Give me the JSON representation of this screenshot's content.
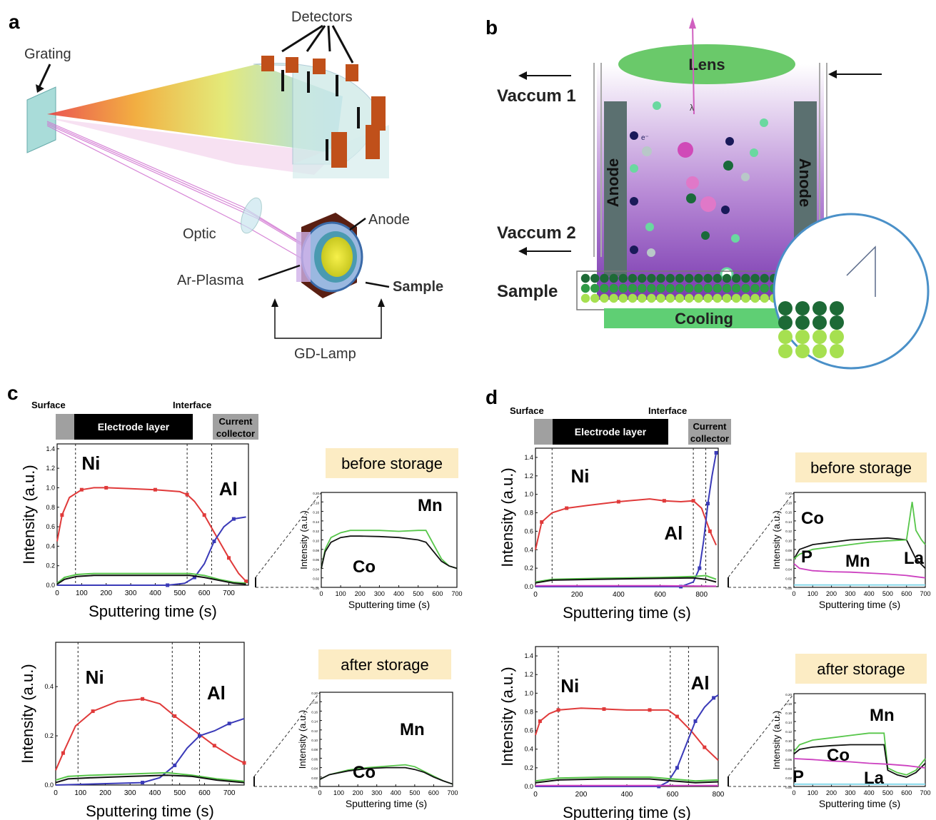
{
  "figure": {
    "panel_labels": {
      "a": "a",
      "b": "b",
      "c": "c",
      "d": "d"
    },
    "panel_a": {
      "detectors": "Detectors",
      "grating": "Grating",
      "optic": "Optic",
      "anode": "Anode",
      "ar_plasma": "Ar-Plasma",
      "sample": "Sample",
      "gd_lamp": "GD-Lamp"
    },
    "panel_b": {
      "lens": "Lens",
      "vaccum1": "Vaccum 1",
      "vaccum2": "Vaccum 2",
      "anode_left": "Anode",
      "anode_right": "Anode",
      "sample": "Sample",
      "cooling": "Cooling",
      "lambda": "λ",
      "electron": "e⁻"
    },
    "colors": {
      "ni": "#e03a3a",
      "al": "#3a3ab8",
      "co": "#111111",
      "mn": "#57c64a",
      "p": "#cc40c0",
      "la": "#7fd6e8",
      "storage_box": "#fcecc4",
      "lens": "#6ac96a",
      "cooling": "#5fcf74"
    }
  },
  "chart_data": [
    {
      "id": "c-top-main",
      "type": "line",
      "xlabel": "Sputtering time (s)",
      "ylabel": "Intensity (a.u.)",
      "xlim": [
        0,
        780
      ],
      "ylim": [
        0,
        1.45
      ],
      "xticks": [
        0,
        100,
        200,
        300,
        400,
        500,
        600,
        700
      ],
      "yticks": [
        0.0,
        0.2,
        0.4,
        0.6,
        0.8,
        1.0,
        1.2,
        1.4
      ],
      "header": {
        "surface": "Surface",
        "interface": "Interface",
        "electrode": "Electrode layer",
        "current": "Current",
        "collector": "collector"
      },
      "vlines": [
        75,
        530,
        630
      ],
      "annotations": {
        "ni": "Ni",
        "al": "Al"
      },
      "series": [
        {
          "name": "Ni",
          "x": [
            0,
            20,
            50,
            100,
            150,
            200,
            300,
            400,
            500,
            530,
            560,
            600,
            650,
            700,
            740,
            770
          ],
          "y": [
            0.45,
            0.72,
            0.9,
            0.98,
            1.0,
            1.0,
            0.99,
            0.98,
            0.96,
            0.93,
            0.86,
            0.72,
            0.5,
            0.28,
            0.12,
            0.04
          ]
        },
        {
          "name": "Al",
          "x": [
            0,
            450,
            520,
            560,
            600,
            640,
            680,
            720,
            770
          ],
          "y": [
            0.0,
            0.0,
            0.02,
            0.08,
            0.22,
            0.45,
            0.6,
            0.68,
            0.7
          ]
        },
        {
          "name": "Mn",
          "x": [
            0,
            30,
            80,
            150,
            300,
            450,
            540,
            600,
            660,
            720,
            770
          ],
          "y": [
            0.02,
            0.08,
            0.11,
            0.12,
            0.12,
            0.12,
            0.12,
            0.1,
            0.06,
            0.03,
            0.02
          ]
        },
        {
          "name": "Co",
          "x": [
            0,
            30,
            80,
            150,
            300,
            450,
            540,
            600,
            660,
            720,
            770
          ],
          "y": [
            0.01,
            0.06,
            0.09,
            0.1,
            0.1,
            0.1,
            0.1,
            0.08,
            0.05,
            0.02,
            0.01
          ]
        }
      ]
    },
    {
      "id": "c-top-inset",
      "type": "line",
      "xlabel": "Sputtering time (s)",
      "ylabel": "Intensity (a.u.)",
      "xlim": [
        0,
        700
      ],
      "ylim": [
        0,
        0.2
      ],
      "xticks": [
        0,
        100,
        200,
        300,
        400,
        500,
        600,
        700
      ],
      "yticks": [
        0.0,
        0.02,
        0.04,
        0.06,
        0.08,
        0.1,
        0.12,
        0.14,
        0.16,
        0.18,
        0.2
      ],
      "box_label": "before storage",
      "annotations": {
        "mn": "Mn",
        "co": "Co"
      },
      "series": [
        {
          "name": "Mn",
          "x": [
            0,
            20,
            50,
            100,
            150,
            200,
            300,
            400,
            500,
            540,
            580,
            620,
            660,
            700
          ],
          "y": [
            0.04,
            0.08,
            0.105,
            0.115,
            0.12,
            0.12,
            0.12,
            0.118,
            0.12,
            0.12,
            0.09,
            0.06,
            0.045,
            0.04
          ]
        },
        {
          "name": "Co",
          "x": [
            0,
            20,
            50,
            100,
            150,
            200,
            300,
            400,
            500,
            540,
            580,
            620,
            660,
            700
          ],
          "y": [
            0.04,
            0.075,
            0.095,
            0.105,
            0.108,
            0.108,
            0.107,
            0.105,
            0.1,
            0.095,
            0.075,
            0.055,
            0.045,
            0.04
          ]
        }
      ]
    },
    {
      "id": "c-bot-main",
      "type": "line",
      "xlabel": "Sputtering time (s)",
      "ylabel": "Intensity (a.u.)",
      "xlim": [
        0,
        760
      ],
      "ylim": [
        0,
        0.58
      ],
      "xticks": [
        0,
        100,
        200,
        300,
        400,
        500,
        600,
        700
      ],
      "yticks": [
        0.0,
        0.2,
        0.4
      ],
      "vlines": [
        90,
        470,
        580
      ],
      "annotations": {
        "ni": "Ni",
        "al": "Al"
      },
      "series": [
        {
          "name": "Ni",
          "x": [
            0,
            30,
            80,
            150,
            250,
            350,
            420,
            480,
            560,
            640,
            720,
            760
          ],
          "y": [
            0.06,
            0.13,
            0.24,
            0.3,
            0.34,
            0.35,
            0.33,
            0.28,
            0.22,
            0.16,
            0.11,
            0.09
          ]
        },
        {
          "name": "Al",
          "x": [
            0,
            350,
            420,
            480,
            530,
            580,
            640,
            700,
            760
          ],
          "y": [
            0.0,
            0.01,
            0.03,
            0.08,
            0.15,
            0.2,
            0.22,
            0.25,
            0.27
          ]
        },
        {
          "name": "Mn",
          "x": [
            0,
            50,
            150,
            300,
            450,
            550,
            650,
            760
          ],
          "y": [
            0.02,
            0.035,
            0.04,
            0.045,
            0.05,
            0.04,
            0.025,
            0.015
          ]
        },
        {
          "name": "Co",
          "x": [
            0,
            50,
            150,
            300,
            450,
            550,
            650,
            760
          ],
          "y": [
            0.01,
            0.025,
            0.03,
            0.035,
            0.04,
            0.035,
            0.02,
            0.01
          ]
        }
      ]
    },
    {
      "id": "c-bot-inset",
      "type": "line",
      "xlabel": "Sputtering time (s)",
      "ylabel": "Intensity (a.u.)",
      "xlim": [
        0,
        700
      ],
      "ylim": [
        0,
        0.2
      ],
      "xticks": [
        0,
        100,
        200,
        300,
        400,
        500,
        600,
        700
      ],
      "yticks": [
        0.0,
        0.02,
        0.04,
        0.06,
        0.08,
        0.1,
        0.12,
        0.14,
        0.16,
        0.18,
        0.2
      ],
      "box_label": "after storage",
      "annotations": {
        "mn": "Mn",
        "co": "Co"
      },
      "series": [
        {
          "name": "Mn",
          "x": [
            0,
            50,
            150,
            250,
            350,
            450,
            500,
            550,
            600,
            650,
            700
          ],
          "y": [
            0.015,
            0.025,
            0.035,
            0.04,
            0.043,
            0.046,
            0.042,
            0.032,
            0.022,
            0.012,
            0.005
          ]
        },
        {
          "name": "Co",
          "x": [
            0,
            50,
            150,
            250,
            350,
            450,
            500,
            550,
            600,
            650,
            700
          ],
          "y": [
            0.015,
            0.025,
            0.033,
            0.038,
            0.04,
            0.04,
            0.036,
            0.03,
            0.02,
            0.012,
            0.005
          ]
        }
      ]
    },
    {
      "id": "d-top-main",
      "type": "line",
      "xlabel": "Sputtering time (s)",
      "ylabel": "Intensity (a.u.)",
      "xlim": [
        0,
        880
      ],
      "ylim": [
        0,
        1.5
      ],
      "xticks": [
        0,
        200,
        400,
        600,
        800
      ],
      "yticks": [
        0.0,
        0.2,
        0.4,
        0.6,
        0.8,
        1.0,
        1.2,
        1.4
      ],
      "header": {
        "surface": "Surface",
        "interface": "Interface",
        "electrode": "Electrode layer",
        "current": "Current",
        "collector": "collector"
      },
      "vlines": [
        80,
        760,
        820
      ],
      "annotations": {
        "ni": "Ni",
        "al": "Al"
      },
      "series": [
        {
          "name": "Ni",
          "x": [
            0,
            30,
            80,
            150,
            250,
            400,
            550,
            620,
            700,
            760,
            800,
            840,
            870
          ],
          "y": [
            0.4,
            0.7,
            0.8,
            0.85,
            0.88,
            0.92,
            0.95,
            0.93,
            0.92,
            0.93,
            0.85,
            0.6,
            0.45
          ]
        },
        {
          "name": "Al",
          "x": [
            0,
            700,
            760,
            790,
            810,
            830,
            850,
            870
          ],
          "y": [
            0.0,
            0.0,
            0.05,
            0.2,
            0.5,
            0.9,
            1.2,
            1.45
          ]
        },
        {
          "name": "Mn",
          "x": [
            0,
            80,
            300,
            600,
            760,
            820,
            870
          ],
          "y": [
            0.05,
            0.08,
            0.09,
            0.1,
            0.11,
            0.12,
            0.08
          ]
        },
        {
          "name": "Co",
          "x": [
            0,
            80,
            300,
            600,
            760,
            820,
            870
          ],
          "y": [
            0.04,
            0.07,
            0.08,
            0.09,
            0.095,
            0.08,
            0.05
          ]
        },
        {
          "name": "P",
          "x": [
            0,
            300,
            600,
            870
          ],
          "y": [
            0.01,
            0.01,
            0.01,
            0.005
          ]
        }
      ]
    },
    {
      "id": "d-top-inset",
      "type": "line",
      "xlabel": "Sputtering time (s)",
      "ylabel": "Intensity (a.u.)",
      "xlim": [
        0,
        700
      ],
      "ylim": [
        0,
        0.2
      ],
      "xticks": [
        0,
        100,
        200,
        300,
        400,
        500,
        600,
        700
      ],
      "yticks": [
        0.0,
        0.02,
        0.04,
        0.06,
        0.08,
        0.1,
        0.12,
        0.14,
        0.16,
        0.18,
        0.2
      ],
      "box_label": "before storage",
      "annotations": {
        "co": "Co",
        "mn": "Mn",
        "p": "P",
        "la": "La"
      },
      "series": [
        {
          "name": "Co",
          "x": [
            0,
            30,
            100,
            200,
            300,
            400,
            500,
            600,
            650,
            700
          ],
          "y": [
            0.06,
            0.08,
            0.09,
            0.095,
            0.1,
            0.102,
            0.104,
            0.1,
            0.06,
            0.04
          ]
        },
        {
          "name": "Mn",
          "x": [
            0,
            30,
            100,
            200,
            300,
            400,
            500,
            600,
            630,
            650,
            680,
            700
          ],
          "y": [
            0.06,
            0.07,
            0.08,
            0.085,
            0.09,
            0.095,
            0.098,
            0.1,
            0.18,
            0.12,
            0.1,
            0.09
          ]
        },
        {
          "name": "P",
          "x": [
            0,
            30,
            100,
            200,
            300,
            400,
            500,
            600,
            700
          ],
          "y": [
            0.05,
            0.04,
            0.035,
            0.033,
            0.032,
            0.03,
            0.028,
            0.025,
            0.02
          ]
        },
        {
          "name": "La",
          "x": [
            0,
            700
          ],
          "y": [
            0.005,
            0.005
          ]
        }
      ]
    },
    {
      "id": "d-bot-main",
      "type": "line",
      "xlabel": "Sputtering time (s)",
      "ylabel": "Intensity (a.u.)",
      "xlim": [
        0,
        800
      ],
      "ylim": [
        0,
        1.5
      ],
      "xticks": [
        0,
        200,
        400,
        600,
        800
      ],
      "yticks": [
        0.0,
        0.2,
        0.4,
        0.6,
        0.8,
        1.0,
        1.2,
        1.4
      ],
      "vlines": [
        100,
        590,
        670
      ],
      "annotations": {
        "ni": "Ni",
        "al": "Al"
      },
      "series": [
        {
          "name": "Ni",
          "x": [
            0,
            20,
            60,
            100,
            200,
            300,
            400,
            500,
            580,
            620,
            680,
            740,
            800
          ],
          "y": [
            0.55,
            0.7,
            0.78,
            0.82,
            0.84,
            0.83,
            0.82,
            0.82,
            0.82,
            0.75,
            0.6,
            0.42,
            0.28
          ]
        },
        {
          "name": "Al",
          "x": [
            0,
            540,
            580,
            620,
            660,
            700,
            740,
            780,
            800
          ],
          "y": [
            0.0,
            0.0,
            0.05,
            0.2,
            0.45,
            0.7,
            0.85,
            0.95,
            0.98
          ]
        },
        {
          "name": "Mn",
          "x": [
            0,
            100,
            300,
            500,
            600,
            700,
            800
          ],
          "y": [
            0.06,
            0.09,
            0.1,
            0.1,
            0.08,
            0.06,
            0.07
          ]
        },
        {
          "name": "Co",
          "x": [
            0,
            100,
            300,
            500,
            600,
            700,
            800
          ],
          "y": [
            0.04,
            0.07,
            0.08,
            0.08,
            0.06,
            0.04,
            0.05
          ]
        },
        {
          "name": "P",
          "x": [
            0,
            300,
            600,
            800
          ],
          "y": [
            0.01,
            0.01,
            0.01,
            0.01
          ]
        }
      ]
    },
    {
      "id": "d-bot-inset",
      "type": "line",
      "xlabel": "Sputtering time (s)",
      "ylabel": "Intensity (a.u.)",
      "xlim": [
        0,
        700
      ],
      "ylim": [
        0,
        0.2
      ],
      "xticks": [
        0,
        100,
        200,
        300,
        400,
        500,
        600,
        700
      ],
      "yticks": [
        0.0,
        0.02,
        0.04,
        0.06,
        0.08,
        0.1,
        0.12,
        0.14,
        0.16,
        0.18,
        0.2
      ],
      "box_label": "after storage",
      "annotations": {
        "mn": "Mn",
        "co": "Co",
        "p": "P",
        "la": "La"
      },
      "series": [
        {
          "name": "Mn",
          "x": [
            0,
            30,
            100,
            200,
            300,
            400,
            480,
            500,
            550,
            600,
            650,
            700
          ],
          "y": [
            0.075,
            0.09,
            0.1,
            0.105,
            0.11,
            0.115,
            0.115,
            0.04,
            0.03,
            0.025,
            0.035,
            0.06
          ]
        },
        {
          "name": "Co",
          "x": [
            0,
            30,
            100,
            200,
            300,
            400,
            480,
            500,
            550,
            600,
            650,
            700
          ],
          "y": [
            0.07,
            0.08,
            0.085,
            0.088,
            0.09,
            0.09,
            0.09,
            0.035,
            0.025,
            0.02,
            0.03,
            0.05
          ]
        },
        {
          "name": "P",
          "x": [
            0,
            100,
            200,
            300,
            400,
            500,
            600,
            700
          ],
          "y": [
            0.06,
            0.058,
            0.055,
            0.053,
            0.05,
            0.048,
            0.045,
            0.04
          ]
        },
        {
          "name": "La",
          "x": [
            0,
            700
          ],
          "y": [
            0.005,
            0.005
          ]
        }
      ]
    }
  ]
}
